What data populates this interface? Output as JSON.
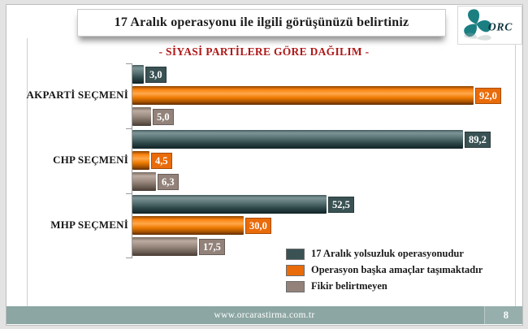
{
  "slide": {
    "title": "17 Aralık operasyonu ile ilgili görüşünüzü belirtiniz",
    "subtitle": "- SİYASİ PARTİLERE GÖRE DAĞILIM -",
    "footer_url": "www.orcarastirma.com.tr",
    "page_number": "8",
    "logo_text": "ORC"
  },
  "colors": {
    "series_teal": "#3A5254",
    "series_orange": "#E96B0A",
    "series_tan": "#93827A",
    "subtitle_red": "#B01818",
    "footer_bg": "#8BA6A3",
    "logo_teal": "#1B7F82",
    "logo_text_dark": "#10333E"
  },
  "chart_data": {
    "type": "bar",
    "orientation": "horizontal",
    "title": "17 Aralık operasyonu ile ilgili görüşünüzü belirtiniz",
    "subtitle": "- SİYASİ PARTİLERE GÖRE DAĞILIM -",
    "categories": [
      "AKPARTİ SEÇMENİ",
      "CHP SEÇMENİ",
      "MHP SEÇMENİ"
    ],
    "series": [
      {
        "name": "17 Aralık yolsuzluk operasyonudur",
        "color": "#3A5254",
        "values": [
          3.0,
          89.2,
          52.5
        ],
        "labels": [
          "3,0",
          "89,2",
          "52,5"
        ]
      },
      {
        "name": "Operasyon başka amaçlar taşımaktadır",
        "color": "#E96B0A",
        "values": [
          92.0,
          4.5,
          30.0
        ],
        "labels": [
          "92,0",
          "4,5",
          "30,0"
        ]
      },
      {
        "name": "Fikir belirtmeyen",
        "color": "#93827A",
        "values": [
          5.0,
          6.3,
          17.5
        ],
        "labels": [
          "5,0",
          "6,3",
          "17,5"
        ]
      }
    ],
    "xlim": [
      0,
      100
    ],
    "value_format": "comma-decimal",
    "legend_position": "bottom-right",
    "grid": false
  }
}
